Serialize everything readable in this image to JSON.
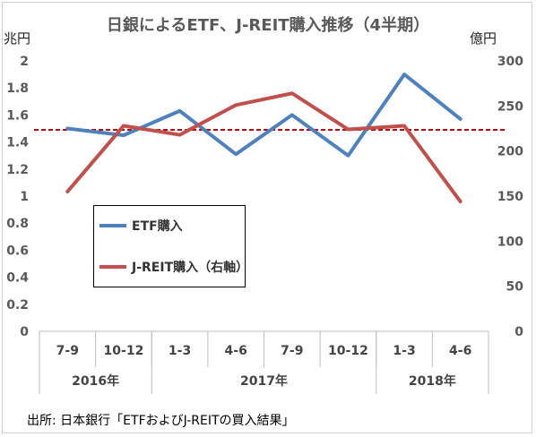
{
  "title": "日銀によるETF、J-REIT購入推移（4半期）",
  "source": "出所: 日本銀行「ETFおよびJ-REITの買入結果」",
  "colors": {
    "etf": "#4f81bd",
    "jreit": "#c0504d",
    "reference": "#c00000"
  },
  "chart_data": {
    "type": "line",
    "categories": [
      "7-9",
      "10-12",
      "1-3",
      "4-6",
      "7-9",
      "10-12",
      "1-3",
      "4-6"
    ],
    "groups": [
      {
        "label": "2016年",
        "span": 2
      },
      {
        "label": "2017年",
        "span": 4
      },
      {
        "label": "2018年",
        "span": 2
      }
    ],
    "left_axis": {
      "unit": "兆円",
      "ylim": [
        0,
        2
      ],
      "ticks": [
        "0",
        "0.2",
        "0.4",
        "0.6",
        "0.8",
        "1",
        "1.2",
        "1.4",
        "1.6",
        "1.8",
        "2"
      ]
    },
    "right_axis": {
      "unit": "億円",
      "ylim": [
        0,
        300
      ],
      "ticks": [
        "0",
        "50",
        "100",
        "150",
        "200",
        "250",
        "300"
      ]
    },
    "series": [
      {
        "name": "ETF購入",
        "axis": "left",
        "values": [
          1.5,
          1.45,
          1.63,
          1.31,
          1.6,
          1.3,
          1.9,
          1.57
        ]
      },
      {
        "name": "J-REIT購入（右軸）",
        "axis": "right",
        "values": [
          155,
          228,
          218,
          251,
          264,
          224,
          228,
          144
        ]
      }
    ],
    "reference_line": {
      "axis": "left",
      "value": 1.49,
      "style": "dashed"
    },
    "legend": "inside-left",
    "grid": false
  }
}
